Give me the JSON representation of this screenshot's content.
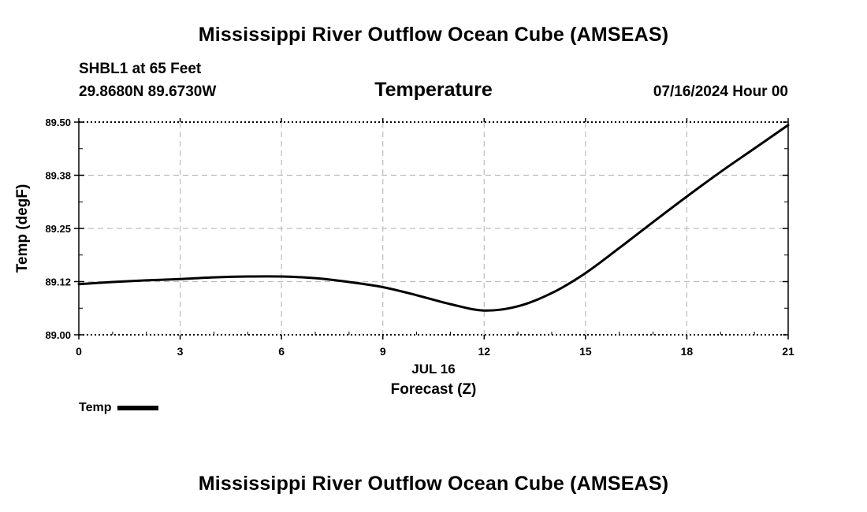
{
  "header": {
    "title": "Mississippi River Outflow Ocean Cube (AMSEAS)",
    "station": "SHBL1 at 65 Feet",
    "coordinates": "29.8680N  89.6730W",
    "subtitle": "Temperature",
    "datetime": "07/16/2024 Hour 00"
  },
  "footer": {
    "title": "Mississippi River Outflow Ocean Cube (AMSEAS)"
  },
  "legend": {
    "label": "Temp"
  },
  "chart_data": {
    "type": "line",
    "title": "Temperature",
    "xlabel": "Forecast (Z)",
    "x_date_label": "JUL 16",
    "ylabel": "Temp (degF)",
    "xlim": [
      0,
      21
    ],
    "ylim": [
      89.0,
      89.5
    ],
    "x_ticks": [
      0,
      3,
      6,
      9,
      12,
      15,
      18,
      21
    ],
    "x_tick_labels": [
      "0",
      "3",
      "6",
      "9",
      "12",
      "15",
      "18",
      "21"
    ],
    "y_ticks": [
      89.0,
      89.125,
      89.25,
      89.375,
      89.5
    ],
    "y_tick_labels": [
      "89.00",
      "89.12",
      "89.25",
      "89.38",
      "89.50"
    ],
    "grid": true,
    "series": [
      {
        "name": "Temp",
        "color": "#000000",
        "x": [
          0,
          1,
          2,
          3,
          4,
          5,
          6,
          7,
          8,
          9,
          10,
          11,
          12,
          13,
          14,
          15,
          16,
          17,
          18,
          19,
          20,
          21
        ],
        "y": [
          89.119,
          89.124,
          89.128,
          89.131,
          89.135,
          89.137,
          89.137,
          89.133,
          89.124,
          89.112,
          89.093,
          89.072,
          89.057,
          89.067,
          89.098,
          89.145,
          89.204,
          89.265,
          89.325,
          89.383,
          89.438,
          89.493
        ]
      }
    ]
  }
}
